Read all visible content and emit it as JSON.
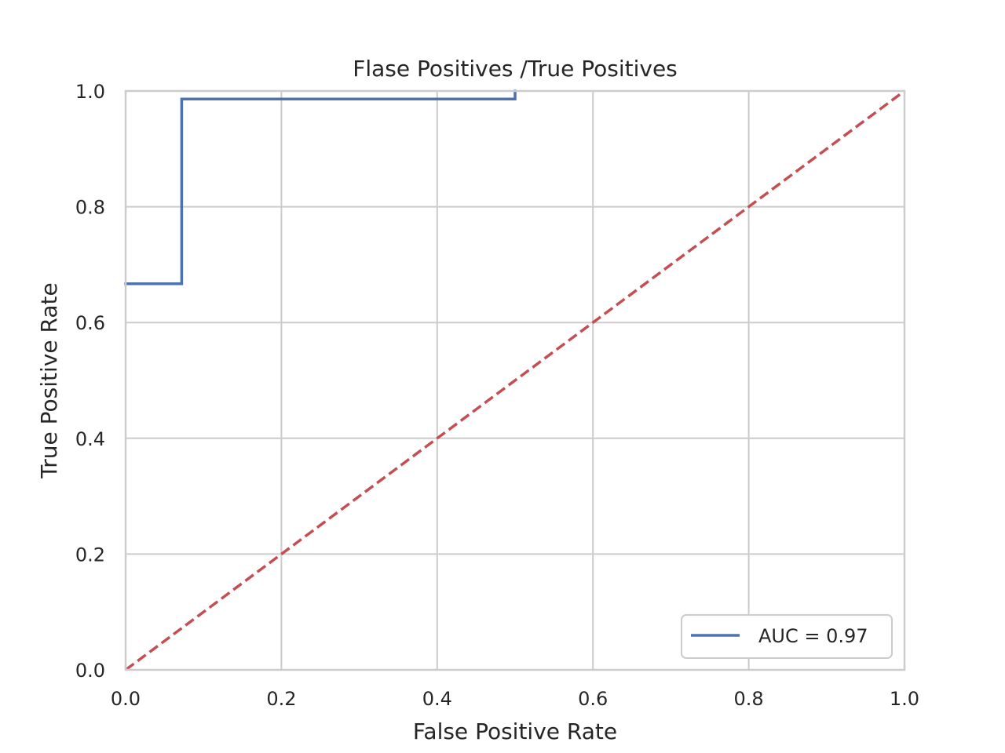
{
  "chart_data": {
    "type": "line",
    "title": "Flase Positives /True Positives",
    "xlabel": "False Positive Rate",
    "ylabel": "True Positive Rate",
    "xlim": [
      0.0,
      1.0
    ],
    "ylim": [
      0.0,
      1.0
    ],
    "x_ticks": [
      "0.0",
      "0.2",
      "0.4",
      "0.6",
      "0.8",
      "1.0"
    ],
    "y_ticks": [
      "0.0",
      "0.2",
      "0.4",
      "0.6",
      "0.8",
      "1.0"
    ],
    "grid": true,
    "legend_position": "lower-right",
    "series": [
      {
        "name": "AUC = 0.97",
        "color": "#4c72b0",
        "style": "solid",
        "step": true,
        "x": [
          0.0,
          0.072,
          0.072,
          0.5,
          0.5
        ],
        "y": [
          0.667,
          0.667,
          0.986,
          0.986,
          1.0
        ]
      },
      {
        "color": "#c44e52",
        "style": "dashed",
        "x": [
          0.0,
          1.0
        ],
        "y": [
          0.0,
          1.0
        ]
      }
    ],
    "colors": {
      "grid": "#cccccc",
      "spine": "#cccccc",
      "text": "#262626",
      "background": "#ffffff"
    }
  }
}
